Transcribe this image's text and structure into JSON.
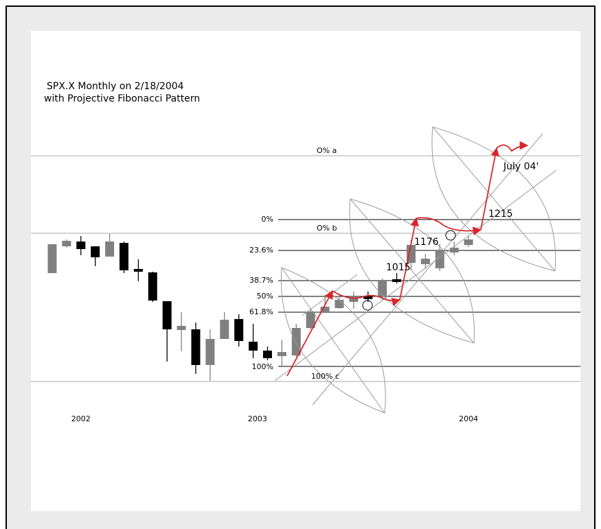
{
  "chart_data": {
    "type": "candlestick",
    "title": "SPX.X Monthly on  2/18/2004",
    "subtitle": "with Projective Fibonacci Pattern",
    "categories": [
      null,
      null,
      null,
      null,
      null,
      null,
      null,
      null,
      null,
      null,
      null,
      null,
      null,
      null,
      null,
      null,
      null,
      null,
      null,
      null,
      null,
      null,
      null,
      null,
      null,
      null,
      null,
      null,
      null,
      null
    ],
    "xticks": [
      {
        "value": 2,
        "label": "2002"
      },
      {
        "value": 14.3,
        "label": "2003"
      },
      {
        "value": 29,
        "label": "2004"
      }
    ],
    "open": [
      1064,
      1142,
      1156,
      1142,
      1112,
      1152,
      1076,
      1066,
      982,
      898,
      900,
      796,
      872,
      930,
      864,
      838,
      822,
      824,
      904,
      950,
      962,
      980,
      998,
      996,
      1046,
      1094,
      1090,
      1078,
      1124,
      1146
    ],
    "high": [
      1148,
      1162,
      1172,
      1142,
      1178,
      1156,
      1104,
      1068,
      982,
      950,
      920,
      900,
      950,
      944,
      916,
      850,
      870,
      916,
      960,
      1000,
      1004,
      1010,
      1010,
      1048,
      1064,
      1160,
      1120,
      1148,
      1156,
      1174
    ],
    "low": [
      1064,
      1138,
      1116,
      1084,
      1112,
      1064,
      1040,
      980,
      806,
      836,
      770,
      750,
      872,
      850,
      816,
      810,
      790,
      820,
      900,
      950,
      960,
      960,
      980,
      986,
      1034,
      1074,
      1076,
      1070,
      1116,
      1140
    ],
    "close": [
      1148,
      1158,
      1134,
      1110,
      1156,
      1072,
      1068,
      984,
      900,
      910,
      796,
      872,
      928,
      866,
      838,
      816,
      834,
      904,
      950,
      966,
      986,
      996,
      988,
      1042,
      1038,
      1146,
      1106,
      1132,
      1138,
      1162
    ],
    "up_color": "#808080",
    "down_color": "#000000",
    "ylim": [
      370,
      1770
    ],
    "fib_levels": [
      {
        "name": "0%",
        "price": 1220
      },
      {
        "name": "23.6%",
        "price": 1130
      },
      {
        "name": "38.7%",
        "price": 1042
      },
      {
        "name": "50%",
        "price": 996
      },
      {
        "name": "61.8%",
        "price": 950
      },
      {
        "name": "100%",
        "price": 792
      }
    ],
    "projection_levels": [
      {
        "name": "O% a",
        "price": 1406
      },
      {
        "name": "O% b",
        "price": 1180
      },
      {
        "name": "100% c",
        "price": 748
      }
    ],
    "price_targets": [
      1015,
      1176,
      1215
    ],
    "annotation": "July 04'"
  }
}
